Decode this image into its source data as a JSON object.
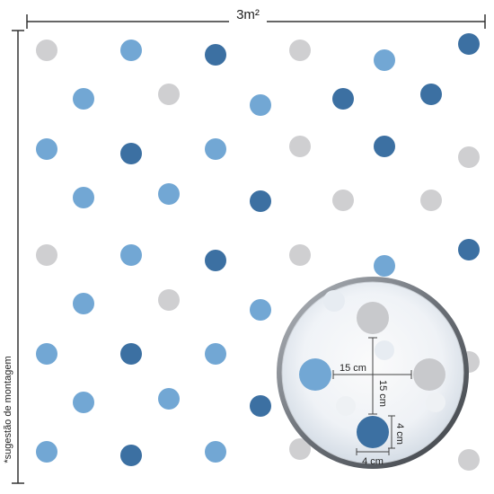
{
  "width_label": "3m²",
  "side_note": "*sugestão de montagem",
  "inset": {
    "horizontal_spacing": "15 cm",
    "vertical_spacing": "15 cm",
    "dot_height": "4 cm",
    "dot_width": "4 cm"
  },
  "colors": {
    "light_gray": "#cfcfd1",
    "light_blue": "#72a7d4",
    "dark_blue": "#3c70a2",
    "line": "#333333"
  },
  "pattern": [
    [
      "light_gray",
      "light_blue",
      "dark_blue",
      "light_gray",
      "light_blue",
      "dark_blue"
    ],
    [
      "light_blue",
      "light_gray",
      "light_blue",
      "dark_blue",
      "dark_blue"
    ],
    [
      "light_blue",
      "dark_blue",
      "light_blue",
      "light_gray",
      "dark_blue",
      "light_gray"
    ],
    [
      "light_blue",
      "light_blue",
      "dark_blue",
      "light_gray",
      "light_gray"
    ],
    [
      "light_gray",
      "light_blue",
      "dark_blue",
      "light_gray",
      "light_blue",
      "dark_blue"
    ],
    [
      "light_blue",
      "light_gray",
      "light_blue",
      "dark_blue",
      "dark_blue"
    ],
    [
      "light_blue",
      "dark_blue",
      "light_blue",
      "light_gray",
      "light_gray",
      "light_gray"
    ],
    [
      "light_blue",
      "light_blue",
      "dark_blue",
      "light_gray",
      "light_gray"
    ],
    [
      "light_blue",
      "dark_blue",
      "light_blue",
      "light_gray",
      "light_blue",
      "light_gray"
    ]
  ]
}
